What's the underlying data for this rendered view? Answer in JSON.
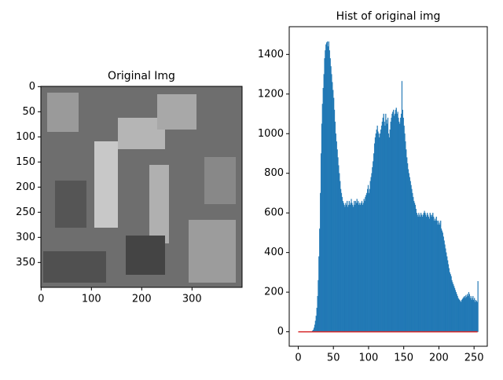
{
  "chart_data": [
    {
      "type": "image",
      "title": "Original Img",
      "xlim": [
        -0.5,
        399.5
      ],
      "ylim": [
        399.5,
        -0.5
      ],
      "xticks": [
        0,
        100,
        200,
        300
      ],
      "yticks": [
        0,
        50,
        100,
        150,
        200,
        250,
        300,
        350
      ]
    },
    {
      "type": "histogram",
      "title": "Hist of original img",
      "color": "#1f77b4",
      "bins": [
        0,
        1,
        2,
        3,
        4,
        5,
        6,
        7,
        8,
        9,
        10,
        11,
        12,
        13,
        14,
        15,
        16,
        17,
        18,
        19,
        20,
        21,
        22,
        23,
        24,
        25,
        26,
        27,
        28,
        29,
        30,
        31,
        32,
        33,
        34,
        35,
        36,
        37,
        38,
        39,
        40,
        41,
        42,
        43,
        44,
        45,
        46,
        47,
        48,
        49,
        50,
        51,
        52,
        53,
        54,
        55,
        56,
        57,
        58,
        59,
        60,
        61,
        62,
        63,
        64,
        65,
        66,
        67,
        68,
        69,
        70,
        71,
        72,
        73,
        74,
        75,
        76,
        77,
        78,
        79,
        80,
        81,
        82,
        83,
        84,
        85,
        86,
        87,
        88,
        89,
        90,
        91,
        92,
        93,
        94,
        95,
        96,
        97,
        98,
        99,
        100,
        101,
        102,
        103,
        104,
        105,
        106,
        107,
        108,
        109,
        110,
        111,
        112,
        113,
        114,
        115,
        116,
        117,
        118,
        119,
        120,
        121,
        122,
        123,
        124,
        125,
        126,
        127,
        128,
        129,
        130,
        131,
        132,
        133,
        134,
        135,
        136,
        137,
        138,
        139,
        140,
        141,
        142,
        143,
        144,
        145,
        146,
        147,
        148,
        149,
        150,
        151,
        152,
        153,
        154,
        155,
        156,
        157,
        158,
        159,
        160,
        161,
        162,
        163,
        164,
        165,
        166,
        167,
        168,
        169,
        170,
        171,
        172,
        173,
        174,
        175,
        176,
        177,
        178,
        179,
        180,
        181,
        182,
        183,
        184,
        185,
        186,
        187,
        188,
        189,
        190,
        191,
        192,
        193,
        194,
        195,
        196,
        197,
        198,
        199,
        200,
        201,
        202,
        203,
        204,
        205,
        206,
        207,
        208,
        209,
        210,
        211,
        212,
        213,
        214,
        215,
        216,
        217,
        218,
        219,
        220,
        221,
        222,
        223,
        224,
        225,
        226,
        227,
        228,
        229,
        230,
        231,
        232,
        233,
        234,
        235,
        236,
        237,
        238,
        239,
        240,
        241,
        242,
        243,
        244,
        245,
        246,
        247,
        248,
        249,
        250,
        251,
        252,
        253,
        254,
        255,
        256
      ],
      "values": [
        0,
        0,
        0,
        0,
        0,
        0,
        0,
        0,
        0,
        0,
        0,
        0,
        0,
        0,
        0,
        0,
        0,
        0,
        1,
        2,
        5,
        10,
        20,
        35,
        55,
        80,
        120,
        180,
        260,
        380,
        520,
        700,
        900,
        1050,
        1150,
        1230,
        1300,
        1380,
        1420,
        1450,
        1460,
        1465,
        1440,
        1465,
        1420,
        1380,
        1340,
        1300,
        1260,
        1220,
        1180,
        1120,
        1060,
        1000,
        960,
        920,
        880,
        840,
        800,
        760,
        720,
        700,
        680,
        660,
        650,
        640,
        630,
        650,
        640,
        660,
        630,
        640,
        660,
        640,
        650,
        670,
        650,
        640,
        630,
        660,
        640,
        660,
        650,
        670,
        650,
        660,
        640,
        650,
        640,
        650,
        660,
        640,
        650,
        670,
        660,
        680,
        690,
        700,
        720,
        740,
        700,
        720,
        760,
        780,
        800,
        830,
        860,
        900,
        950,
        980,
        1000,
        1020,
        1040,
        1010,
        1000,
        980,
        1000,
        1020,
        1040,
        1060,
        1080,
        1100,
        1060,
        1040,
        1100,
        1070,
        1050,
        1080,
        1000,
        980,
        1020,
        1060,
        1080,
        1100,
        1110,
        1120,
        1090,
        1100,
        1120,
        1130,
        1100,
        1110,
        1080,
        1060,
        1050,
        1080,
        1100,
        1265,
        1120,
        1080,
        1040,
        1000,
        960,
        920,
        880,
        850,
        820,
        800,
        780,
        760,
        740,
        720,
        700,
        680,
        660,
        650,
        640,
        620,
        600,
        590,
        580,
        600,
        590,
        580,
        600,
        590,
        580,
        590,
        600,
        610,
        600,
        590,
        580,
        600,
        590,
        580,
        570,
        600,
        590,
        580,
        590,
        600,
        580,
        560,
        570,
        560,
        580,
        560,
        540,
        560,
        550,
        540,
        560,
        520,
        510,
        500,
        480,
        460,
        440,
        420,
        400,
        380,
        360,
        340,
        320,
        300,
        290,
        280,
        260,
        250,
        240,
        230,
        220,
        210,
        200,
        190,
        180,
        170,
        165,
        160,
        155,
        150,
        160,
        165,
        170,
        175,
        180,
        170,
        185,
        175,
        190,
        180,
        200,
        190,
        170,
        180,
        160,
        170,
        180,
        160,
        170,
        150,
        160,
        155,
        150,
        255
      ],
      "line": {
        "color": "#d62728",
        "x": [
          0,
          255
        ],
        "values": [
          0,
          0
        ]
      },
      "xlim": [
        -12.8,
        268.8
      ],
      "ylim": [
        -73,
        1540
      ],
      "xticks": [
        0,
        50,
        100,
        150,
        200,
        250
      ],
      "yticks": [
        0,
        200,
        400,
        600,
        800,
        1000,
        1200,
        1400
      ]
    }
  ]
}
